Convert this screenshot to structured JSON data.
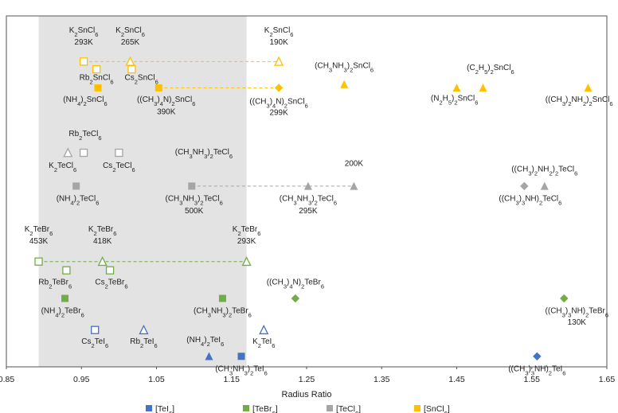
{
  "chart_data": {
    "type": "scatter",
    "title": "",
    "xlabel": "Radius Ratio",
    "ylabel": "",
    "xlim": [
      0.85,
      1.65
    ],
    "x_ticks": [
      0.85,
      0.95,
      1.05,
      1.15,
      1.25,
      1.35,
      1.45,
      1.55,
      1.65
    ],
    "x_tick_labels": [
      "0.85",
      "0.95",
      "1.05",
      "1.15",
      "1.25",
      "1.35",
      "1.45",
      "1.55",
      "1.65"
    ],
    "ylim": [
      0,
      100
    ],
    "grid": false,
    "shaded_region": {
      "x_from": 0.893,
      "x_to": 1.17
    },
    "legend": {
      "placement": "bottom",
      "entries": [
        {
          "label": "[TeI6]",
          "color": "#4472C4"
        },
        {
          "label": "[TeBr6]",
          "color": "#70AD47"
        },
        {
          "label": "[TeCl6]",
          "color": "#A5A5A5"
        },
        {
          "label": "[SnCl6]",
          "color": "#FFC000"
        }
      ]
    },
    "connectors": [
      {
        "series": "[SnCl6]",
        "x1": 0.953,
        "x2": 1.213,
        "y": 87.0
      },
      {
        "series": "[SnCl6]",
        "x1": 1.053,
        "x2": 1.213,
        "y": 79.5
      },
      {
        "series": "[TeCl6]",
        "x1": 1.097,
        "x2": 1.313,
        "y": 51.5
      },
      {
        "series": "[TeBr6]",
        "x1": 0.893,
        "x2": 1.17,
        "y": 30.0
      }
    ],
    "points": [
      {
        "series": "[SnCl6]",
        "compound": "K2SnCl6",
        "marker": "square-open",
        "x": 0.953,
        "y": 87.0
      },
      {
        "series": "[SnCl6]",
        "compound": "K2SnCl6",
        "marker": "triangle-open",
        "x": 1.015,
        "y": 87.0
      },
      {
        "series": "[SnCl6]",
        "compound": "K2SnCl6",
        "marker": "triangle-open",
        "x": 1.213,
        "y": 87.0
      },
      {
        "series": "[SnCl6]",
        "compound": "Rb2SnCl6",
        "marker": "square-open",
        "x": 0.97,
        "y": 84.8
      },
      {
        "series": "[SnCl6]",
        "compound": "Cs2SnCl6",
        "marker": "square-open",
        "x": 1.017,
        "y": 84.8
      },
      {
        "series": "[SnCl6]",
        "compound": "(NH4)2SnCl6",
        "marker": "square",
        "x": 0.972,
        "y": 79.5
      },
      {
        "series": "[SnCl6]",
        "compound": "((CH3)4N)2SnCl6",
        "marker": "square",
        "x": 1.053,
        "y": 79.5
      },
      {
        "series": "[SnCl6]",
        "compound": "((CH3)4N)2SnCl6",
        "marker": "diamond",
        "x": 1.213,
        "y": 79.5
      },
      {
        "series": "[SnCl6]",
        "compound": "(CH3NH3)2SnCl6",
        "marker": "triangle",
        "x": 1.3,
        "y": 80.5
      },
      {
        "series": "[SnCl6]",
        "compound": "(N2H5)2SnCl6",
        "marker": "triangle",
        "x": 1.45,
        "y": 79.5
      },
      {
        "series": "[SnCl6]",
        "compound": "(C2H5)2SnCl6",
        "marker": "triangle",
        "x": 1.485,
        "y": 79.5
      },
      {
        "series": "[SnCl6]",
        "compound": "((CH3)2NH2)2SnCl6",
        "marker": "triangle",
        "x": 1.625,
        "y": 79.5
      },
      {
        "series": "[TeCl6]",
        "compound": "K2TeCl6",
        "marker": "triangle-open",
        "x": 0.932,
        "y": 61.0
      },
      {
        "series": "[TeCl6]",
        "compound": "Rb2TeCl6",
        "marker": "square-open",
        "x": 0.953,
        "y": 61.0
      },
      {
        "series": "[TeCl6]",
        "compound": "Cs2TeCl6",
        "marker": "square-open",
        "x": 1.0,
        "y": 61.0
      },
      {
        "series": "[TeCl6]",
        "compound": "(NH4)2TeCl6",
        "marker": "square",
        "x": 0.943,
        "y": 51.5
      },
      {
        "series": "[TeCl6]",
        "compound": "(CH3NH3)2TeCl6",
        "marker": "square",
        "x": 1.097,
        "y": 51.5
      },
      {
        "series": "[TeCl6]",
        "compound": "(CH3NH3)2TeCl6",
        "marker": "triangle",
        "x": 1.252,
        "y": 51.5
      },
      {
        "series": "[TeCl6]",
        "compound": "(CH3NH3)2TeCl6",
        "marker": "triangle",
        "x": 1.313,
        "y": 51.5
      },
      {
        "series": "[TeCl6]",
        "compound": "((CH3)2NH2)2TeCl6",
        "marker": "diamond",
        "x": 1.54,
        "y": 51.5
      },
      {
        "series": "[TeCl6]",
        "compound": "((CH3)3NH)2TeCl6",
        "marker": "triangle",
        "x": 1.567,
        "y": 51.5
      },
      {
        "series": "[TeBr6]",
        "compound": "K2TeBr6",
        "marker": "square-open",
        "x": 0.893,
        "y": 30.0
      },
      {
        "series": "[TeBr6]",
        "compound": "K2TeBr6",
        "marker": "triangle-open",
        "x": 0.978,
        "y": 30.0
      },
      {
        "series": "[TeBr6]",
        "compound": "K2TeBr6",
        "marker": "triangle-open",
        "x": 1.17,
        "y": 30.0
      },
      {
        "series": "[TeBr6]",
        "compound": "Rb2TeBr6",
        "marker": "square-open",
        "x": 0.93,
        "y": 27.5
      },
      {
        "series": "[TeBr6]",
        "compound": "Cs2TeBr6",
        "marker": "square-open",
        "x": 0.988,
        "y": 27.5
      },
      {
        "series": "[TeBr6]",
        "compound": "(NH4)2TeBr6",
        "marker": "square",
        "x": 0.928,
        "y": 19.5
      },
      {
        "series": "[TeBr6]",
        "compound": "(CH3NH3)2TeBr6",
        "marker": "square",
        "x": 1.138,
        "y": 19.5
      },
      {
        "series": "[TeBr6]",
        "compound": "((CH3)4N)2TeBr6",
        "marker": "diamond",
        "x": 1.235,
        "y": 19.5
      },
      {
        "series": "[TeBr6]",
        "compound": "((CH3)3NH)2TeBr6",
        "marker": "diamond",
        "x": 1.593,
        "y": 19.5
      },
      {
        "series": "[TeI6]",
        "compound": "Cs2TeI6",
        "marker": "square-open",
        "x": 0.968,
        "y": 10.5
      },
      {
        "series": "[TeI6]",
        "compound": "Rb2TeI6",
        "marker": "triangle-open",
        "x": 1.033,
        "y": 10.5
      },
      {
        "series": "[TeI6]",
        "compound": "(NH4)2TeI6",
        "marker": "triangle",
        "x": 1.12,
        "y": 3.0
      },
      {
        "series": "[TeI6]",
        "compound": "(CH3NH3)2TeI6",
        "marker": "square",
        "x": 1.163,
        "y": 3.0
      },
      {
        "series": "[TeI6]",
        "compound": "K2TeI6",
        "marker": "triangle-open",
        "x": 1.193,
        "y": 10.5
      },
      {
        "series": "[TeI6]",
        "compound": "((CH3)3NH)2TeI6",
        "marker": "diamond",
        "x": 1.557,
        "y": 3.0
      }
    ],
    "annotations": [
      {
        "text": "K2SnCl6",
        "x": 0.953,
        "y": 95.2
      },
      {
        "text": "293K",
        "x": 0.953,
        "y": 91.8
      },
      {
        "text": "K2SnCl6",
        "x": 1.015,
        "y": 95.2
      },
      {
        "text": "265K",
        "x": 1.015,
        "y": 91.8
      },
      {
        "text": "K2SnCl6",
        "x": 1.213,
        "y": 95.2
      },
      {
        "text": "190K",
        "x": 1.213,
        "y": 91.8
      },
      {
        "text": "Rb2SnCl6",
        "x": 0.97,
        "y": 81.8
      },
      {
        "text": "Cs2SnCl6",
        "x": 1.03,
        "y": 81.8
      },
      {
        "text": "(NH4)2SnCl6",
        "x": 0.955,
        "y": 75.5
      },
      {
        "text": "((CH3)4N)2SnCl6",
        "x": 1.063,
        "y": 75.5
      },
      {
        "text": "390K",
        "x": 1.063,
        "y": 72.0
      },
      {
        "text": "((CH3)4N)2SnCl6",
        "x": 1.213,
        "y": 75.0
      },
      {
        "text": "299K",
        "x": 1.213,
        "y": 71.8
      },
      {
        "text": "(CH3NH3)2SnCl6",
        "x": 1.3,
        "y": 85.2
      },
      {
        "text": "(N2H5)2SnCl6",
        "x": 1.447,
        "y": 75.8
      },
      {
        "text": "(C2H5)2SnCl6",
        "x": 1.495,
        "y": 84.6
      },
      {
        "text": "((CH3)2NH2)2SnCl6",
        "x": 1.613,
        "y": 75.5
      },
      {
        "text": "Rb2TeCl6",
        "x": 0.955,
        "y": 65.8
      },
      {
        "text": "K2TeCl6",
        "x": 0.925,
        "y": 56.7
      },
      {
        "text": "Cs2TeCl6",
        "x": 1.0,
        "y": 56.7
      },
      {
        "text": "(NH4)2TeCl6",
        "x": 0.945,
        "y": 47.3
      },
      {
        "text": "(CH3NH3)2TeCl6",
        "x": 1.113,
        "y": 60.5
      },
      {
        "text": "200K",
        "x": 1.313,
        "y": 57.2
      },
      {
        "text": "(CH3NH3)2TeCl6",
        "x": 1.1,
        "y": 47.3
      },
      {
        "text": "500K",
        "x": 1.1,
        "y": 43.8
      },
      {
        "text": "(CH3NH3)2TeCl6",
        "x": 1.252,
        "y": 47.3
      },
      {
        "text": "295K",
        "x": 1.252,
        "y": 43.8
      },
      {
        "text": "((CH3)2NH2)2TeCl6",
        "x": 1.567,
        "y": 55.7
      },
      {
        "text": "((CH3)3NH)2TeCl6",
        "x": 1.548,
        "y": 47.3
      },
      {
        "text": "K2TeBr6",
        "x": 0.893,
        "y": 38.5
      },
      {
        "text": "453K",
        "x": 0.893,
        "y": 35.2
      },
      {
        "text": "K2TeBr6",
        "x": 0.978,
        "y": 38.5
      },
      {
        "text": "418K",
        "x": 0.978,
        "y": 35.2
      },
      {
        "text": "K2TeBr6",
        "x": 1.17,
        "y": 38.5
      },
      {
        "text": "293K",
        "x": 1.17,
        "y": 35.2
      },
      {
        "text": "Rb2TeBr6",
        "x": 0.915,
        "y": 23.5
      },
      {
        "text": "Cs2TeBr6",
        "x": 0.99,
        "y": 23.5
      },
      {
        "text": "(NH4)2TeBr6",
        "x": 0.925,
        "y": 15.3
      },
      {
        "text": "(CH3NH3)2TeBr6",
        "x": 1.138,
        "y": 15.3
      },
      {
        "text": "((CH3)4N)2TeBr6",
        "x": 1.235,
        "y": 23.5
      },
      {
        "text": "((CH3)3NH)2TeBr6",
        "x": 1.61,
        "y": 15.3
      },
      {
        "text": "130K",
        "x": 1.61,
        "y": 12.0
      },
      {
        "text": "Cs2TeI6",
        "x": 0.968,
        "y": 6.6
      },
      {
        "text": "Rb2TeI6",
        "x": 1.033,
        "y": 6.6
      },
      {
        "text": "(NH4)2TeI6",
        "x": 1.115,
        "y": 7.0
      },
      {
        "text": "K2TeI6",
        "x": 1.193,
        "y": 6.6
      },
      {
        "text": "(CH3NH3)2TeI6",
        "x": 1.163,
        "y": -1.3
      },
      {
        "text": "((CH3)3NH)2TeI6",
        "x": 1.557,
        "y": -1.3
      }
    ]
  }
}
